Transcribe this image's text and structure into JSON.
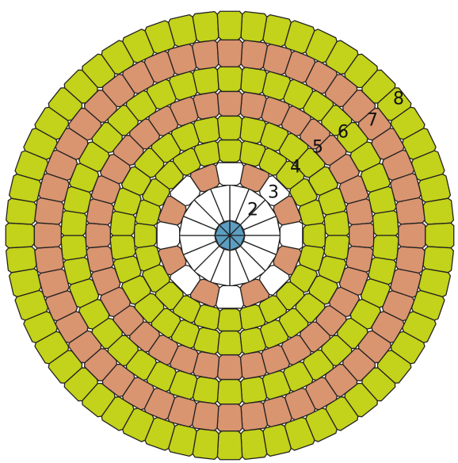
{
  "colors": {
    "green": "#c3d21a",
    "terracotta": "#d99470",
    "center": "#5b9ec1",
    "outline": "#222222",
    "background": "#ffffff"
  },
  "labels": {
    "ring2": "2",
    "ring3": "3",
    "ring4": "4",
    "ring5": "5",
    "ring6": "6",
    "ring7": "7",
    "ring8": "8"
  },
  "rings": [
    {
      "id": "ring1",
      "count": 8,
      "color": "center"
    },
    {
      "id": "ring2",
      "count": 16,
      "color": "background"
    },
    {
      "id": "ring3",
      "count": 16,
      "color": "mixed"
    },
    {
      "id": "ring4",
      "count": 24,
      "color": "green"
    },
    {
      "id": "ring5",
      "count": 30,
      "color": "green"
    },
    {
      "id": "ring6",
      "count": 36,
      "color": "terracotta"
    },
    {
      "id": "ring7",
      "count": 42,
      "color": "green"
    },
    {
      "id": "ring8",
      "count": 48,
      "color": "terracotta"
    },
    {
      "id": "ring9",
      "count": 56,
      "color": "green"
    }
  ]
}
